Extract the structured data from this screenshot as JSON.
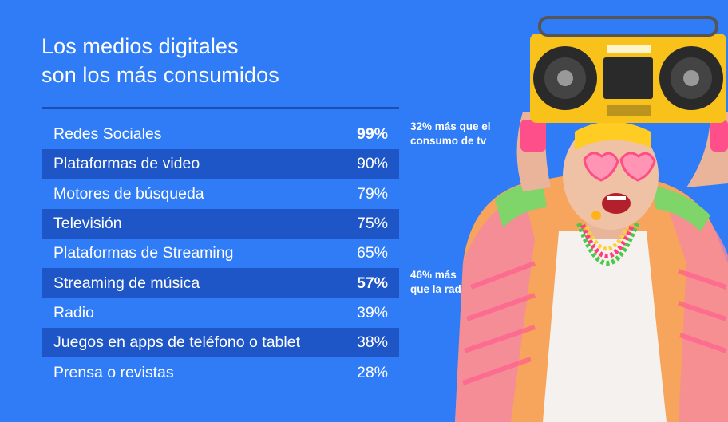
{
  "title": {
    "line1": "Los medios digitales",
    "line2": "son los más consumidos"
  },
  "chart_data": {
    "type": "table",
    "title": "Los medios digitales son los más consumidos",
    "unit": "%",
    "rows": [
      {
        "label": "Redes Sociales",
        "value": 99,
        "display": "99%",
        "bold": true
      },
      {
        "label": "Plataformas de video",
        "value": 90,
        "display": "90%",
        "bold": false
      },
      {
        "label": "Motores de búsqueda",
        "value": 79,
        "display": "79%",
        "bold": false
      },
      {
        "label": "Televisión",
        "value": 75,
        "display": "75%",
        "bold": false
      },
      {
        "label": "Plataformas de Streaming",
        "value": 65,
        "display": "65%",
        "bold": false
      },
      {
        "label": "Streaming de música",
        "value": 57,
        "display": "57%",
        "bold": true
      },
      {
        "label": "Radio",
        "value": 39,
        "display": "39%",
        "bold": false
      },
      {
        "label": "Juegos en apps de teléfono o tablet",
        "value": 38,
        "display": "38%",
        "bold": false
      },
      {
        "label": "Prensa o revistas",
        "value": 28,
        "display": "28%",
        "bold": false
      }
    ],
    "annotations": [
      {
        "line1": "32% más que el",
        "line2": "consumo de tv"
      },
      {
        "line1": "46% más",
        "line2": "que la radio"
      }
    ]
  },
  "colors": {
    "background": "#2f7cf6",
    "row_shade": "#1e55c7",
    "divider": "#1d4fb0",
    "text": "#ffffff"
  }
}
